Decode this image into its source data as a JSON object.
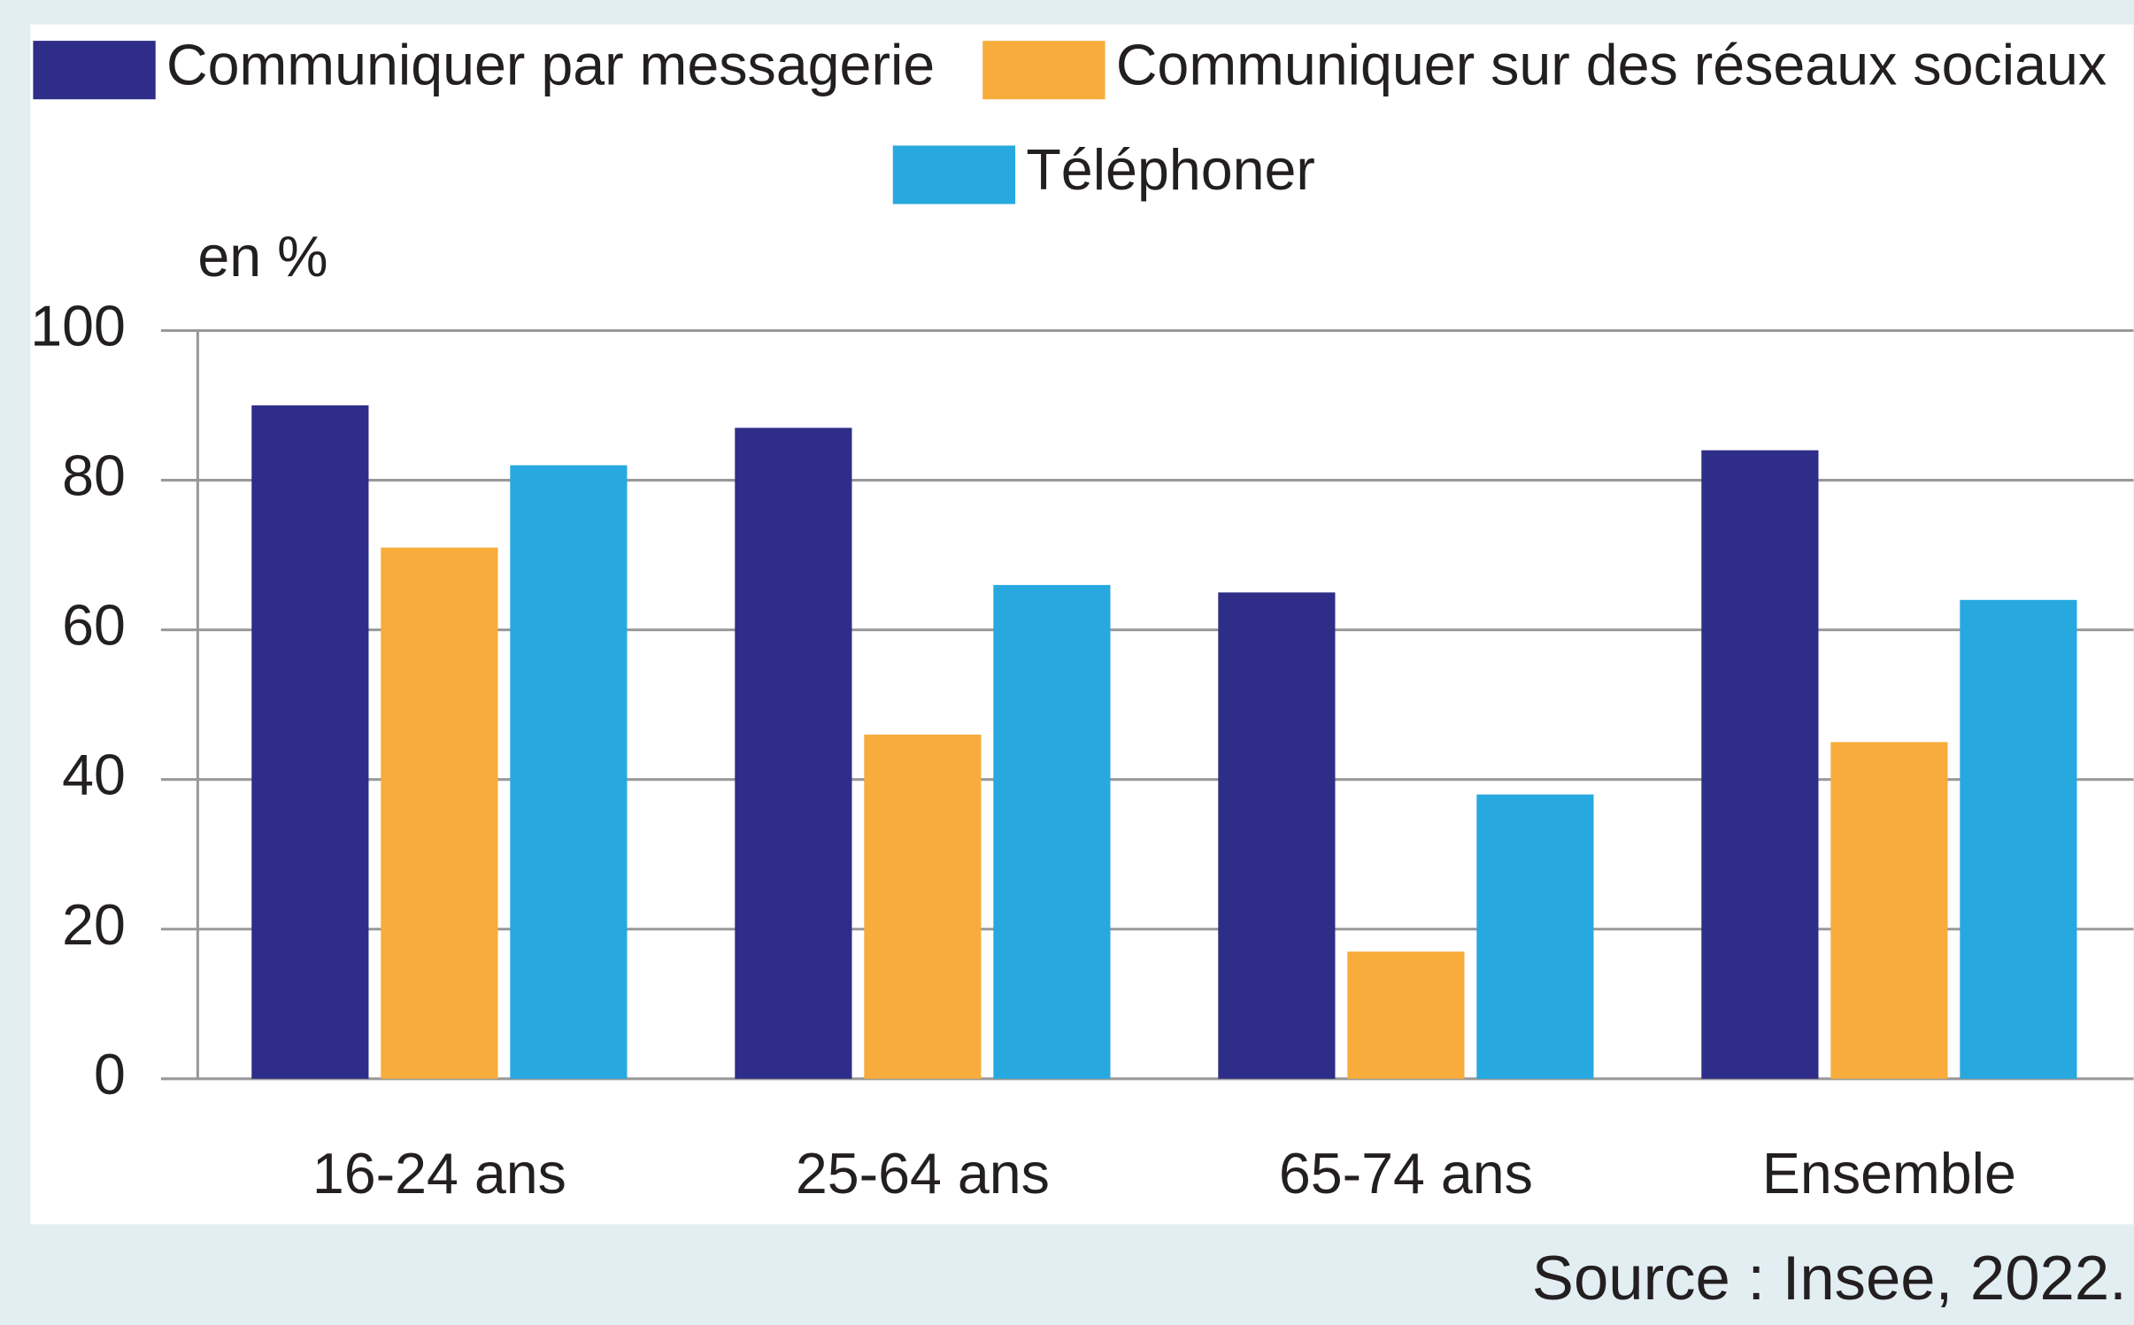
{
  "chart_data": {
    "type": "bar",
    "y_label": "en %",
    "source": "Source : Insee, 2022.",
    "categories": [
      "16-24 ans",
      "25-64 ans",
      "65-74 ans",
      "Ensemble"
    ],
    "series": [
      {
        "name": "Communiquer par messagerie",
        "color": "#2e2d88",
        "values": [
          90,
          87,
          65,
          84
        ]
      },
      {
        "name": "Communiquer sur des réseaux sociaux",
        "color": "#f7ac3b",
        "values": [
          71,
          46,
          17,
          45
        ]
      },
      {
        "name": "Téléphoner",
        "color": "#27a9e0",
        "values": [
          82,
          66,
          38,
          64
        ]
      }
    ],
    "ylim": [
      0,
      100
    ],
    "yticks": [
      0,
      20,
      40,
      60,
      80,
      100
    ],
    "grid": true,
    "legend": "top"
  }
}
